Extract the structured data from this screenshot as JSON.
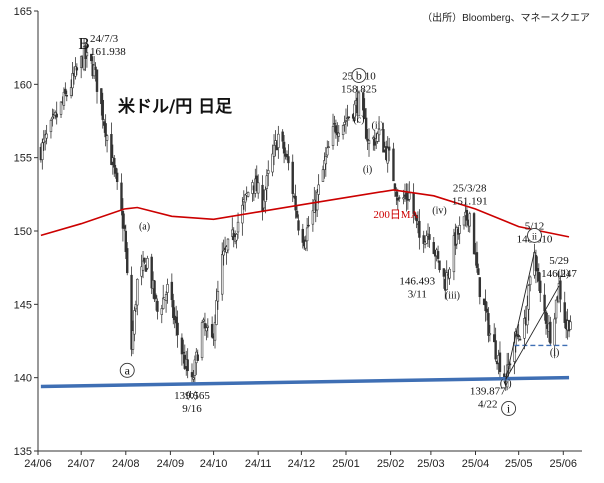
{
  "chart_data": {
    "type": "candlestick",
    "title": "米ドル/円 日足",
    "source": "（出所）Bloomberg、マネースクエア",
    "x_ticks": [
      "24/06",
      "24/07",
      "24/08",
      "24/09",
      "24/10",
      "24/11",
      "24/12",
      "25/01",
      "25/02",
      "25/03",
      "25/04",
      "25/05",
      "25/06"
    ],
    "y_ticks": [
      135,
      140,
      145,
      150,
      155,
      160,
      165
    ],
    "ylim": [
      135,
      165
    ],
    "price_path": [
      [
        "2024-06-03",
        155.5
      ],
      [
        "2024-06-10",
        157.0
      ],
      [
        "2024-06-17",
        158.5
      ],
      [
        "2024-06-24",
        160.0
      ],
      [
        "2024-07-01",
        161.5
      ],
      [
        "2024-07-03",
        161.938
      ],
      [
        "2024-07-10",
        161.0
      ],
      [
        "2024-07-17",
        157.5
      ],
      [
        "2024-07-24",
        154.0
      ],
      [
        "2024-07-31",
        150.0
      ],
      [
        "2024-08-05",
        142.0
      ],
      [
        "2024-08-09",
        146.5
      ],
      [
        "2024-08-16",
        148.0
      ],
      [
        "2024-08-23",
        144.5
      ],
      [
        "2024-08-30",
        146.0
      ],
      [
        "2024-09-06",
        143.0
      ],
      [
        "2024-09-11",
        141.0
      ],
      [
        "2024-09-16",
        139.565
      ],
      [
        "2024-09-23",
        143.5
      ],
      [
        "2024-09-30",
        142.5
      ],
      [
        "2024-10-07",
        148.0
      ],
      [
        "2024-10-14",
        149.5
      ],
      [
        "2024-10-21",
        151.5
      ],
      [
        "2024-10-28",
        153.5
      ],
      [
        "2024-11-04",
        152.0
      ],
      [
        "2024-11-11",
        155.0
      ],
      [
        "2024-11-15",
        156.5
      ],
      [
        "2024-11-22",
        154.5
      ],
      [
        "2024-11-29",
        150.5
      ],
      [
        "2024-12-03",
        149.5
      ],
      [
        "2024-12-10",
        151.5
      ],
      [
        "2024-12-17",
        154.5
      ],
      [
        "2024-12-24",
        157.0
      ],
      [
        "2024-12-31",
        157.5
      ],
      [
        "2025-01-10",
        158.825
      ],
      [
        "2025-01-17",
        156.0
      ],
      [
        "2025-01-24",
        156.5
      ],
      [
        "2025-01-31",
        155.0
      ],
      [
        "2025-02-07",
        152.0
      ],
      [
        "2025-02-14",
        152.5
      ],
      [
        "2025-02-21",
        149.5
      ],
      [
        "2025-02-28",
        150.0
      ],
      [
        "2025-03-07",
        147.5
      ],
      [
        "2025-03-11",
        146.493
      ],
      [
        "2025-03-18",
        149.5
      ],
      [
        "2025-03-28",
        151.191
      ],
      [
        "2025-04-03",
        146.5
      ],
      [
        "2025-04-11",
        143.0
      ],
      [
        "2025-04-22",
        139.877
      ],
      [
        "2025-04-28",
        142.5
      ],
      [
        "2025-05-05",
        143.5
      ],
      [
        "2025-05-12",
        148.61
      ],
      [
        "2025-05-16",
        145.5
      ],
      [
        "2025-05-23",
        143.0
      ],
      [
        "2025-05-29",
        146.247
      ],
      [
        "2025-06-03",
        143.5
      ],
      [
        "2025-06-06",
        144.0
      ]
    ],
    "ma200": {
      "label": "200日MA",
      "color": "#cc0000",
      "points": [
        [
          "2024-06-03",
          149.7
        ],
        [
          "2024-07-01",
          150.5
        ],
        [
          "2024-07-31",
          151.5
        ],
        [
          "2024-08-09",
          151.6
        ],
        [
          "2024-09-02",
          151.0
        ],
        [
          "2024-10-01",
          150.8
        ],
        [
          "2024-11-01",
          151.3
        ],
        [
          "2024-12-02",
          151.8
        ],
        [
          "2025-01-02",
          152.3
        ],
        [
          "2025-02-03",
          152.8
        ],
        [
          "2025-03-03",
          152.4
        ],
        [
          "2025-04-01",
          151.5
        ],
        [
          "2025-05-01",
          150.3
        ],
        [
          "2025-06-05",
          149.6
        ]
      ]
    },
    "trend_line": {
      "color": "#3f6fb4",
      "from": [
        "2024-06-03",
        139.4
      ],
      "to": [
        "2025-06-05",
        140.0
      ]
    },
    "dashed_level": {
      "color": "#3f6fb4",
      "from": [
        "2025-04-28",
        142.2
      ],
      "to": [
        "2025-06-05",
        142.2
      ]
    },
    "wedge_lines": [
      {
        "from": [
          "2025-04-22",
          139.877
        ],
        "to": [
          "2025-05-12",
          148.61
        ]
      },
      {
        "from": [
          "2025-04-22",
          139.877
        ],
        "to": [
          "2025-05-29",
          146.247
        ]
      }
    ],
    "annotations": [
      {
        "x": "2024-07-03",
        "y": 161.938,
        "lines": [
          "24/7/3",
          "161.938"
        ],
        "pos": "above-right"
      },
      {
        "x": "2024-09-16",
        "y": 139.565,
        "lines": [
          "139.565",
          "9/16"
        ],
        "pos": "below"
      },
      {
        "x": "2025-01-10",
        "y": 158.825,
        "lines": [
          "25/1/10",
          "158.825"
        ],
        "pos": "above"
      },
      {
        "x": "2025-03-11",
        "y": 146.493,
        "lines": [
          "146.493",
          "3/11"
        ],
        "pos": "left"
      },
      {
        "x": "2025-03-28",
        "y": 151.191,
        "lines": [
          "25/3/28",
          "151.191"
        ],
        "pos": "above"
      },
      {
        "x": "2025-04-22",
        "y": 139.877,
        "lines": [
          "139.877",
          "4/22"
        ],
        "pos": "below-left"
      },
      {
        "x": "2025-05-12",
        "y": 148.61,
        "lines": [
          "5/12",
          "148.610"
        ],
        "pos": "above"
      },
      {
        "x": "2025-05-29",
        "y": 146.247,
        "lines": [
          "5/29",
          "146.247"
        ],
        "pos": "above"
      }
    ],
    "wave_labels": [
      {
        "text": "B",
        "x": "2024-07-03",
        "y": 162.4,
        "style": "big"
      },
      {
        "text": "a",
        "x": "2024-08-02",
        "y": 140.5,
        "style": "circle"
      },
      {
        "text": "(a)",
        "x": "2024-08-14",
        "y": 150.1,
        "style": "paren"
      },
      {
        "text": "(b)",
        "x": "2024-09-16",
        "y": 138.6,
        "style": "paren"
      },
      {
        "text": "(c)",
        "x": "2025-01-10",
        "y": 157.4,
        "style": "paren"
      },
      {
        "text": "b",
        "x": "2025-01-10",
        "y": 160.6,
        "style": "circle"
      },
      {
        "text": "ii",
        "x": "2025-01-23",
        "y": 157.0,
        "style": "paren-roman"
      },
      {
        "text": "i",
        "x": "2025-01-16",
        "y": 154.0,
        "style": "paren-roman"
      },
      {
        "text": "iv",
        "x": "2025-03-07",
        "y": 151.2,
        "style": "paren-roman"
      },
      {
        "text": "iii",
        "x": "2025-03-16",
        "y": 145.4,
        "style": "paren-roman"
      },
      {
        "text": "v",
        "x": "2025-04-22",
        "y": 139.4,
        "style": "paren-roman"
      },
      {
        "text": "i",
        "x": "2025-04-24",
        "y": 137.9,
        "style": "circle"
      },
      {
        "text": "ii",
        "x": "2025-05-12",
        "y": 149.7,
        "style": "circle"
      },
      {
        "text": "ii",
        "x": "2025-06-01",
        "y": 146.9,
        "style": "paren-roman"
      },
      {
        "text": "i",
        "x": "2025-05-26",
        "y": 141.5,
        "style": "paren-roman"
      }
    ],
    "ma_label": {
      "text": "200日MA",
      "x": "2025-01-20",
      "y": 150.9
    }
  }
}
